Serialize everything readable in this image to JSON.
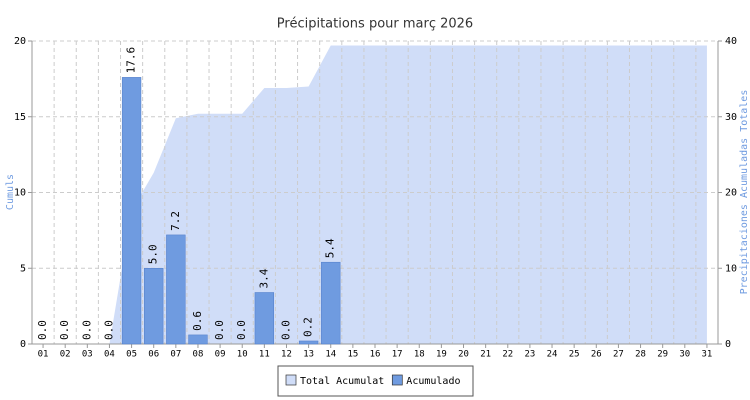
{
  "chart_data": {
    "type": "bar",
    "title": "Précipitations pour marҫ 2026",
    "ylabel": "Cumuls",
    "y2label": "Precipitaciones Acumuladas Totales",
    "categories": [
      "01",
      "02",
      "03",
      "04",
      "05",
      "06",
      "07",
      "08",
      "09",
      "10",
      "11",
      "12",
      "13",
      "14",
      "15",
      "16",
      "17",
      "18",
      "19",
      "20",
      "21",
      "22",
      "23",
      "24",
      "25",
      "26",
      "27",
      "28",
      "29",
      "30",
      "31"
    ],
    "series": [
      {
        "name": "Total Acumulat",
        "type": "area",
        "axis": "y2",
        "color": "#d0ddf8",
        "values": [
          0,
          0,
          0,
          0,
          17.6,
          22.6,
          29.8,
          30.4,
          30.4,
          30.4,
          33.8,
          33.8,
          34.0,
          39.4,
          39.4,
          39.4,
          39.4,
          39.4,
          39.4,
          39.4,
          39.4,
          39.4,
          39.4,
          39.4,
          39.4,
          39.4,
          39.4,
          39.4,
          39.4,
          39.4,
          39.4
        ]
      },
      {
        "name": "Acumulado",
        "type": "bar",
        "color": "#6f9be0",
        "values": [
          0,
          0,
          0,
          0,
          17.6,
          5,
          7.2,
          0.6,
          0,
          0,
          3.4,
          0,
          0.2,
          5.4,
          null,
          null,
          null,
          null,
          null,
          null,
          null,
          null,
          null,
          null,
          null,
          null,
          null,
          null,
          null,
          null,
          null
        ],
        "value_labels": [
          "0.0",
          "0.0",
          "0.0",
          "0.0",
          "17.6",
          "5.0",
          "7.2",
          "0.6",
          "0.0",
          "0.0",
          "3.4",
          "0.0",
          "0.2",
          "5.4",
          null,
          null,
          null,
          null,
          null,
          null,
          null,
          null,
          null,
          null,
          null,
          null,
          null,
          null,
          null,
          null,
          null
        ]
      }
    ],
    "ylim": [
      0,
      20
    ],
    "yticks": [
      0,
      5,
      10,
      15,
      20
    ],
    "y2lim": [
      0,
      40
    ],
    "y2ticks": [
      0,
      10,
      20,
      30,
      40
    ],
    "grid": true,
    "legend": "bottom"
  }
}
